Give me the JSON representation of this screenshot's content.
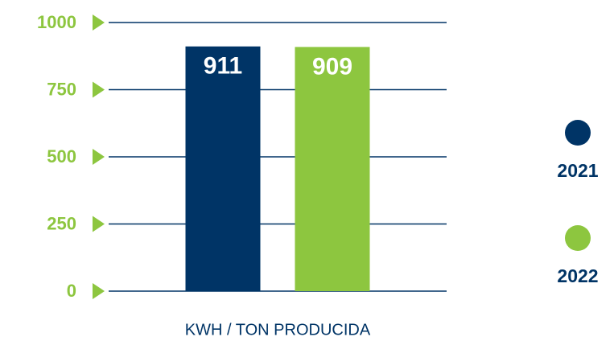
{
  "chart_data": {
    "type": "bar",
    "categories": [
      "KWH / TON PRODUCIDA"
    ],
    "series": [
      {
        "name": "2021",
        "color": "#003466",
        "values": [
          911
        ]
      },
      {
        "name": "2022",
        "color": "#8dc63f",
        "values": [
          909
        ]
      }
    ],
    "ylim": [
      0,
      1000
    ],
    "yticks": [
      0,
      250,
      500,
      750,
      1000
    ],
    "grid": true,
    "legend": "right"
  }
}
